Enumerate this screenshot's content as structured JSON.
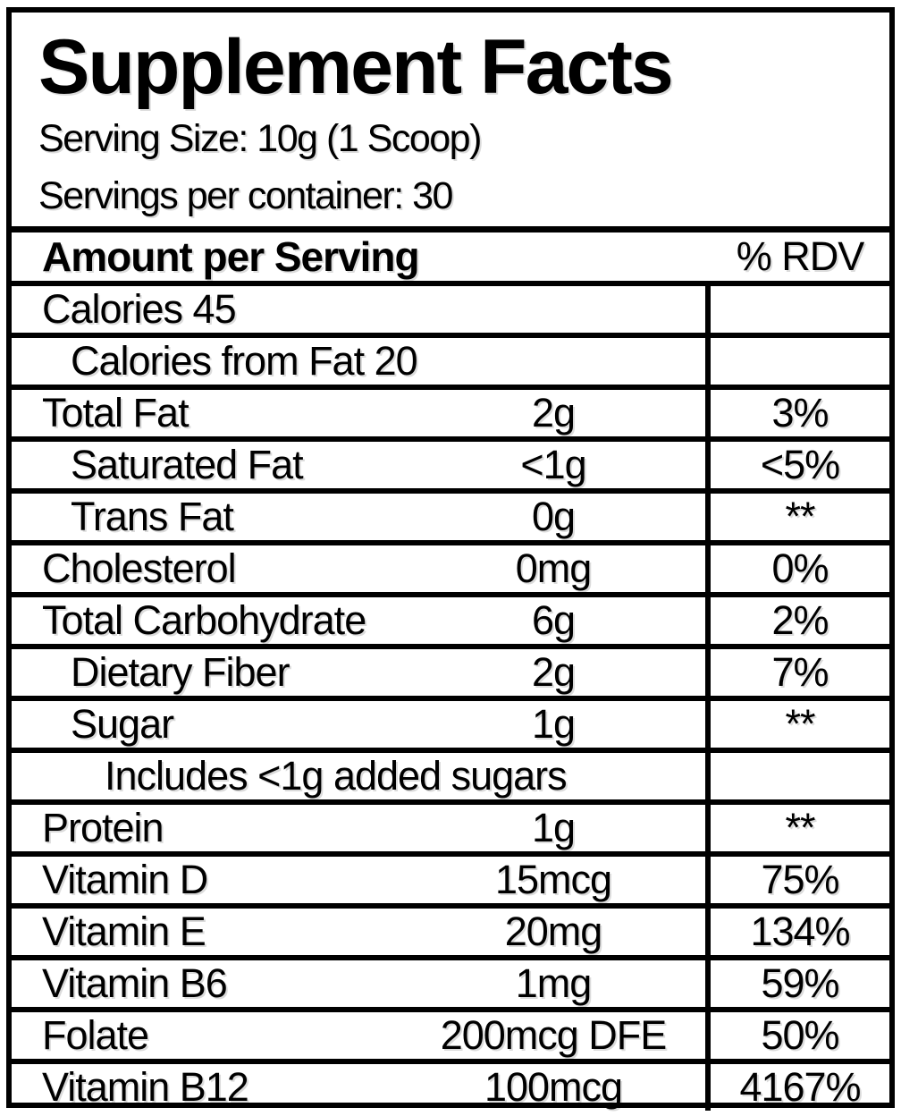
{
  "label": {
    "title": "Supplement Facts",
    "serving_size_line": "Serving Size: 10g (1 Scoop)",
    "servings_per_container_line": "Servings per container: 30"
  },
  "table": {
    "header": {
      "amount_col": "Amount per Serving",
      "rdv_col": "% RDV"
    },
    "rows": [
      {
        "name": "Calories 45",
        "indent": 0,
        "amount": "",
        "rdv": ""
      },
      {
        "name": "Calories from Fat 20",
        "indent": 1,
        "amount": "",
        "rdv": ""
      },
      {
        "name": "Total Fat",
        "indent": 0,
        "amount": "2g",
        "rdv": "3%"
      },
      {
        "name": "Saturated Fat",
        "indent": 1,
        "amount": "<1g",
        "rdv": "<5%"
      },
      {
        "name": "Trans Fat",
        "indent": 1,
        "amount": "0g",
        "rdv": "**"
      },
      {
        "name": "Cholesterol",
        "indent": 0,
        "amount": "0mg",
        "rdv": "0%"
      },
      {
        "name": "Total Carbohydrate",
        "indent": 0,
        "amount": "6g",
        "rdv": "2%"
      },
      {
        "name": "Dietary Fiber",
        "indent": 1,
        "amount": "2g",
        "rdv": "7%"
      },
      {
        "name": "Sugar",
        "indent": 1,
        "amount": "1g",
        "rdv": "**"
      },
      {
        "name": "Includes <1g added sugars",
        "indent": 2,
        "amount": "",
        "rdv": ""
      },
      {
        "name": "Protein",
        "indent": 0,
        "amount": "1g",
        "rdv": "**"
      },
      {
        "name": "Vitamin D",
        "indent": 0,
        "amount": "15mcg",
        "rdv": "75%"
      },
      {
        "name": "Vitamin E",
        "indent": 0,
        "amount": "20mg",
        "rdv": "134%"
      },
      {
        "name": "Vitamin B6",
        "indent": 0,
        "amount": "1mg",
        "rdv": "59%"
      },
      {
        "name": "Folate",
        "indent": 0,
        "amount": "200mcg DFE",
        "rdv": "50%"
      },
      {
        "name": "Vitamin B12",
        "indent": 0,
        "amount": "100mcg",
        "rdv": "4167%"
      }
    ]
  },
  "colors": {
    "ink": "#000000",
    "paper": "#ffffff"
  }
}
